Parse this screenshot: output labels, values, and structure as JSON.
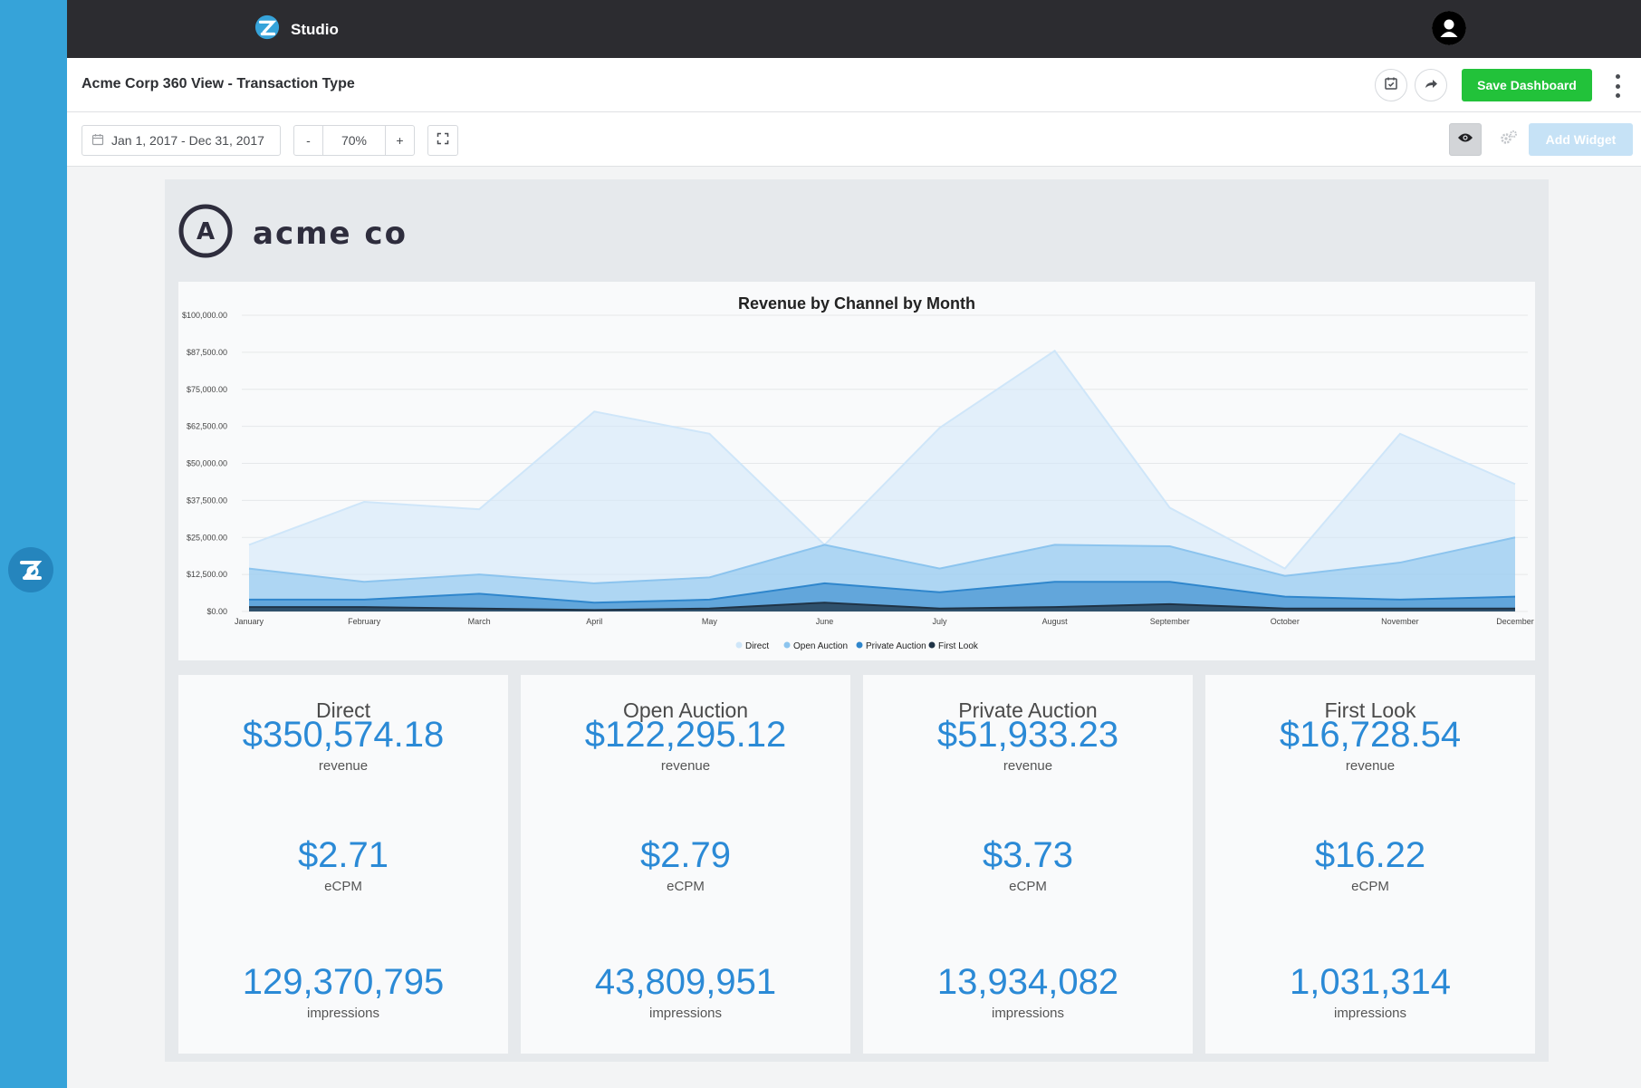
{
  "app": {
    "name": "Studio"
  },
  "dashboard": {
    "title": "Acme Corp 360 View - Transaction Type"
  },
  "actions": {
    "save_label": "Save Dashboard",
    "add_widget_label": "Add Widget"
  },
  "toolbar": {
    "date_range": "Jan 1, 2017 - Dec 31, 2017",
    "zoom_minus": "-",
    "zoom_value": "70%",
    "zoom_plus": "+"
  },
  "company": {
    "name": "acme co",
    "logo_letter": "A"
  },
  "colors": {
    "direct": "#cfe6f9",
    "open_auction": "#8cc4ee",
    "private_auction": "#2f86cc",
    "first_look": "#1f3346",
    "accent": "#2b8ad6",
    "save_green": "#22c23a"
  },
  "chart_data": {
    "type": "area",
    "title": "Revenue by Channel by Month",
    "categories": [
      "January",
      "February",
      "March",
      "April",
      "May",
      "June",
      "July",
      "August",
      "September",
      "October",
      "November",
      "December"
    ],
    "y_ticks": [
      "$0.00",
      "$12,500.00",
      "$25,000.00",
      "$37,500.00",
      "$50,000.00",
      "$62,500.00",
      "$75,000.00",
      "$87,500.00",
      "$100,000.00"
    ],
    "ylim": [
      0,
      100000
    ],
    "grid": true,
    "legend_position": "bottom",
    "series": [
      {
        "name": "Direct",
        "values": [
          22500,
          37000,
          34500,
          67500,
          60000,
          22500,
          62000,
          88000,
          35000,
          14500,
          60000,
          43000
        ]
      },
      {
        "name": "Open Auction",
        "values": [
          14500,
          10000,
          12500,
          9500,
          11500,
          22500,
          14500,
          22500,
          22000,
          12000,
          16500,
          25000
        ]
      },
      {
        "name": "Private Auction",
        "values": [
          4000,
          4000,
          6000,
          3000,
          4000,
          9500,
          6500,
          10000,
          10000,
          5000,
          4000,
          5000
        ]
      },
      {
        "name": "First Look",
        "values": [
          1500,
          1500,
          1000,
          500,
          1000,
          3000,
          1000,
          1500,
          2500,
          1000,
          1000,
          1000
        ]
      }
    ]
  },
  "kpis": [
    {
      "name": "Direct",
      "revenue": "$350,574.18",
      "revenue_label": "revenue",
      "ecpm": "$2.71",
      "ecpm_label": "eCPM",
      "impressions": "129,370,795",
      "impressions_label": "impressions"
    },
    {
      "name": "Open Auction",
      "revenue": "$122,295.12",
      "revenue_label": "revenue",
      "ecpm": "$2.79",
      "ecpm_label": "eCPM",
      "impressions": "43,809,951",
      "impressions_label": "impressions"
    },
    {
      "name": "Private Auction",
      "revenue": "$51,933.23",
      "revenue_label": "revenue",
      "ecpm": "$3.73",
      "ecpm_label": "eCPM",
      "impressions": "13,934,082",
      "impressions_label": "impressions"
    },
    {
      "name": "First Look",
      "revenue": "$16,728.54",
      "revenue_label": "revenue",
      "ecpm": "$16.22",
      "ecpm_label": "eCPM",
      "impressions": "1,031,314",
      "impressions_label": "impressions"
    }
  ]
}
